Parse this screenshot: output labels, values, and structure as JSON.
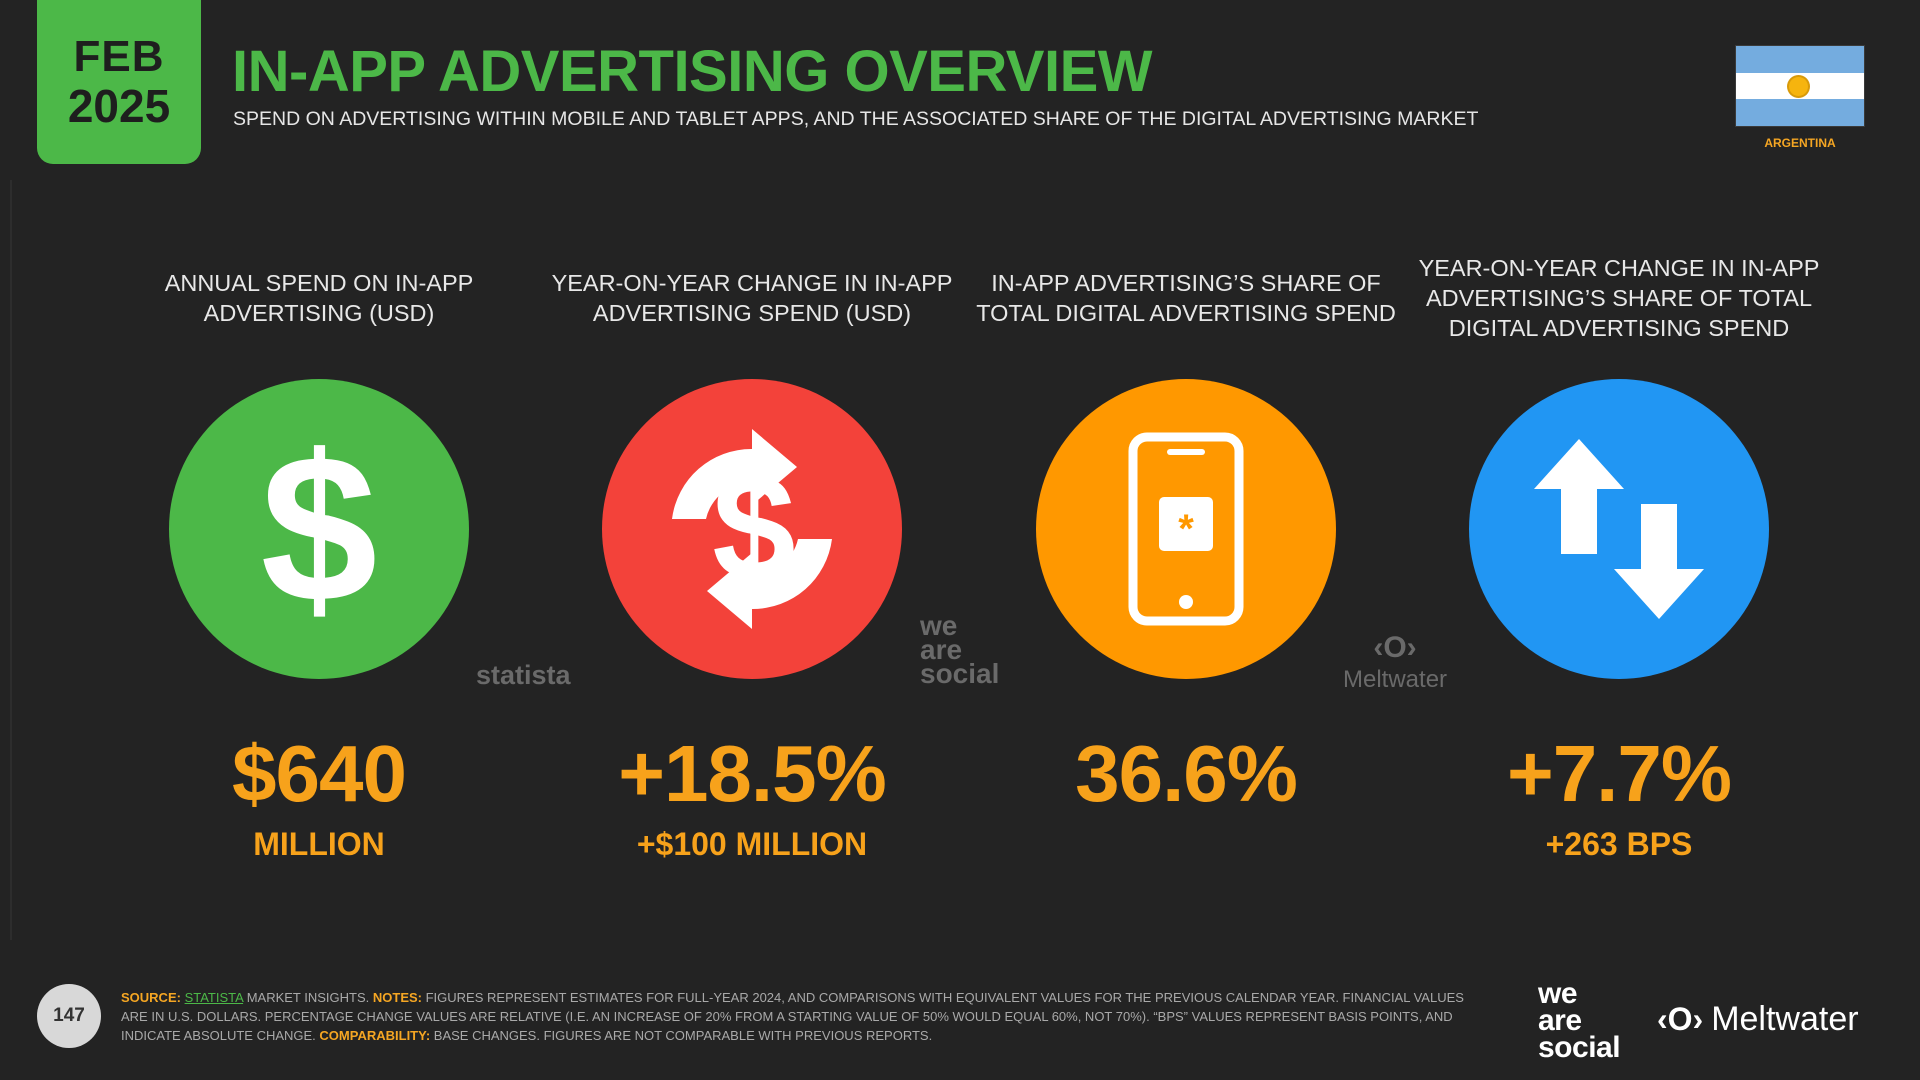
{
  "header": {
    "date_month": "FEB",
    "date_year": "2025",
    "title": "IN-APP ADVERTISING OVERVIEW",
    "subtitle": "SPEND ON ADVERTISING WITHIN MOBILE AND TABLET APPS, AND THE ASSOCIATED SHARE OF THE DIGITAL ADVERTISING MARKET",
    "country": "ARGENTINA"
  },
  "metrics": [
    {
      "label": "ANNUAL SPEND ON IN-APP ADVERTISING (USD)",
      "value": "$640",
      "sub": "MILLION",
      "icon": "dollar-icon",
      "color": "#4cb848"
    },
    {
      "label": "YEAR-ON-YEAR CHANGE IN IN-APP ADVERTISING SPEND (USD)",
      "value": "+18.5%",
      "sub": "+$100 MILLION",
      "icon": "dollar-exchange-icon",
      "color": "#f3423a"
    },
    {
      "label": "IN-APP ADVERTISING’S SHARE OF TOTAL DIGITAL ADVERTISING SPEND",
      "value": "36.6%",
      "sub": "",
      "icon": "smartphone-icon",
      "color": "#ff9800"
    },
    {
      "label": "YEAR-ON-YEAR CHANGE IN IN-APP ADVERTISING’S SHARE OF TOTAL DIGITAL ADVERTISING SPEND",
      "value": "+7.7%",
      "sub": "+263 BPS",
      "icon": "up-down-arrows-icon",
      "color": "#2196f3"
    }
  ],
  "watermarks": {
    "statista": "statista",
    "we_are_social": [
      "we",
      "are",
      "social"
    ],
    "meltwater": "Meltwater"
  },
  "footer": {
    "page_number": "147",
    "source_label": "SOURCE:",
    "source_name": "STATISTA",
    "source_rest": " MARKET INSIGHTS. ",
    "notes_label": "NOTES:",
    "notes_text": " FIGURES REPRESENT ESTIMATES FOR FULL-YEAR 2024, AND COMPARISONS WITH EQUIVALENT VALUES FOR THE PREVIOUS CALENDAR YEAR. FINANCIAL VALUES ARE IN U.S. DOLLARS. PERCENTAGE CHANGE VALUES ARE RELATIVE (I.E. AN INCREASE OF 20% FROM A STARTING VALUE OF 50% WOULD EQUAL 60%, NOT 70%). “BPS” VALUES REPRESENT BASIS POINTS, AND INDICATE ABSOLUTE CHANGE. ",
    "comparability_label": "COMPARABILITY:",
    "comparability_text": " BASE CHANGES. FIGURES ARE NOT COMPARABLE WITH PREVIOUS REPORTS.",
    "logo_we_are_social": [
      "we",
      "are",
      "social"
    ],
    "logo_meltwater": "Meltwater"
  }
}
